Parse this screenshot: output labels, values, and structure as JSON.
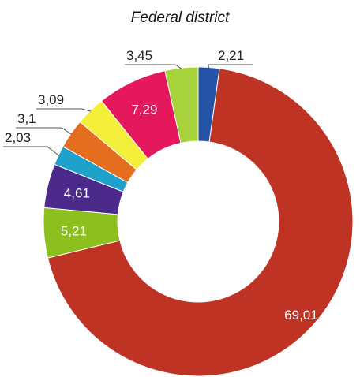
{
  "chart_data": {
    "type": "pie",
    "subtype": "donut",
    "title": "Federal district",
    "start_angle_deg": 90,
    "direction": "clockwise",
    "slices": [
      {
        "value": 2.21,
        "label": "2,21",
        "color": "#2653a5",
        "label_pos": "outside"
      },
      {
        "value": 69.01,
        "label": "69,01",
        "color": "#bf3325",
        "label_pos": "inside"
      },
      {
        "value": 5.21,
        "label": "5,21",
        "color": "#8dbf1e",
        "label_pos": "inside"
      },
      {
        "value": 4.61,
        "label": "4,61",
        "color": "#4b2a8b",
        "label_pos": "inside"
      },
      {
        "value": 2.03,
        "label": "2,03",
        "color": "#1ea2cc",
        "label_pos": "outside"
      },
      {
        "value": 3.1,
        "label": "3,1",
        "color": "#e56d1f",
        "label_pos": "outside"
      },
      {
        "value": 3.09,
        "label": "3,09",
        "color": "#f3ef3b",
        "label_pos": "outside"
      },
      {
        "value": 7.29,
        "label": "7,29",
        "color": "#e5185d",
        "label_pos": "inside"
      },
      {
        "value": 3.45,
        "label": "3,45",
        "color": "#a7d23c",
        "label_pos": "outside"
      }
    ]
  }
}
